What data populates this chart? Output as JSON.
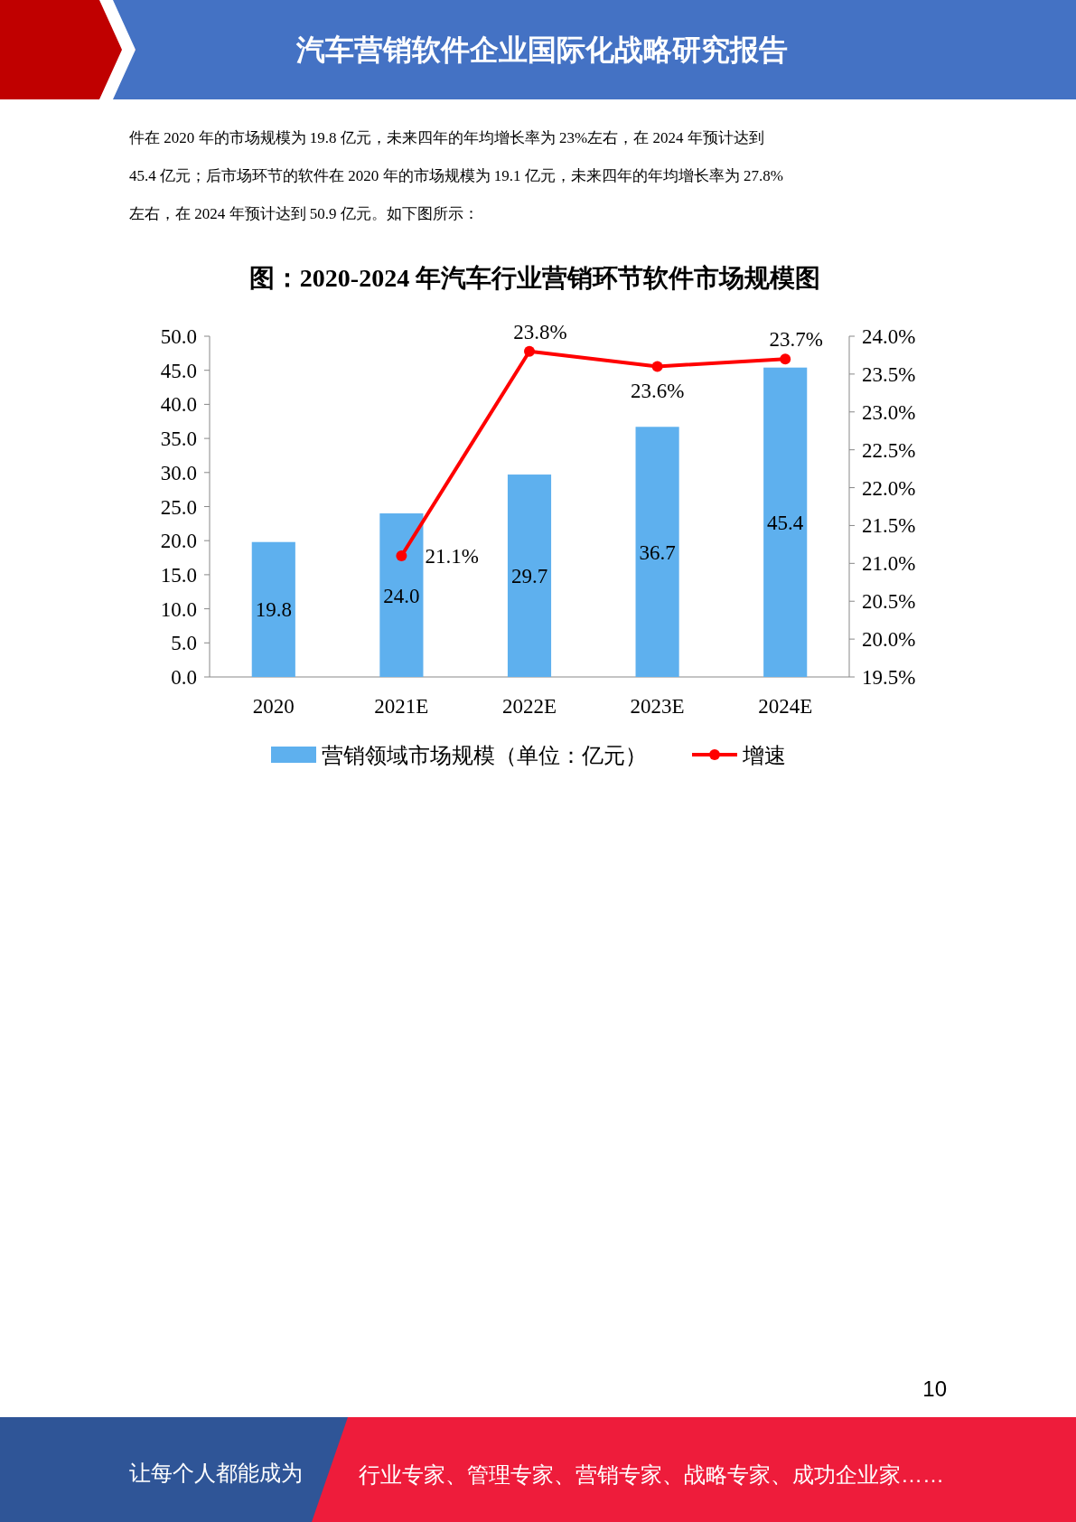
{
  "chart_data": {
    "type": "bar",
    "title": "图：2020-2024 年汽车行业营销环节软件市场规模图",
    "annotations": [
      "汽车营销软件企业国际化战略研究报告",
      "件在 2020 年的市场规模为 19.8 亿元，未来四年的年均增长率为 23%左右，在 2024 年预计达到",
      "45.4 亿元；后市场环节的软件在 2020 年的市场规模为 19.1 亿元，未来四年的年均增长率为 27.8%",
      "左右，在 2024 年预计达到 50.9 亿元。如下图所示：",
      "10",
      "让每个人都能成为",
      "行业专家、管理专家、营销专家、战略专家、成功企业家……"
    ],
    "categories": [
      "2020",
      "2021E",
      "2022E",
      "2023E",
      "2024E"
    ],
    "series": [
      {
        "name": "营销领域市场规模（单位：亿元）",
        "color": "#5eb0ee",
        "values": [
          19.8,
          24.0,
          29.7,
          36.7,
          45.4
        ],
        "value_labels": [
          "19.8",
          "24.0",
          "29.7",
          "36.7",
          "45.4"
        ]
      },
      {
        "name": "增速",
        "type": "line",
        "axis": "y2",
        "color": "#ff0000",
        "values": [
          null,
          21.1,
          23.8,
          23.6,
          23.7
        ],
        "value_labels": [
          null,
          "21.1%",
          "23.8%",
          "23.6%",
          "23.7%"
        ]
      }
    ],
    "ylim": [
      0,
      50
    ],
    "yticks": [
      {
        "value": 0,
        "label": "0.0"
      },
      {
        "value": 5,
        "label": "5.0"
      },
      {
        "value": 10,
        "label": "10.0"
      },
      {
        "value": 15,
        "label": "15.0"
      },
      {
        "value": 20,
        "label": "20.0"
      },
      {
        "value": 25,
        "label": "25.0"
      },
      {
        "value": 30,
        "label": "30.0"
      },
      {
        "value": 35,
        "label": "35.0"
      },
      {
        "value": 40,
        "label": "40.0"
      },
      {
        "value": 45,
        "label": "45.0"
      },
      {
        "value": 50,
        "label": "50.0"
      }
    ],
    "y2lim": [
      19.5,
      24
    ],
    "y2ticks": [
      {
        "value": 19.5,
        "label": "19.5%"
      },
      {
        "value": 20,
        "label": "20.0%"
      },
      {
        "value": 20.5,
        "label": "20.5%"
      },
      {
        "value": 21,
        "label": "21.0%"
      },
      {
        "value": 21.5,
        "label": "21.5%"
      },
      {
        "value": 22,
        "label": "22.0%"
      },
      {
        "value": 22.5,
        "label": "22.5%"
      },
      {
        "value": 23,
        "label": "23.0%"
      },
      {
        "value": 23.5,
        "label": "23.5%"
      },
      {
        "value": 24,
        "label": "24.0%"
      }
    ],
    "legend": "bottom",
    "marker": "circle",
    "grid": false
  }
}
